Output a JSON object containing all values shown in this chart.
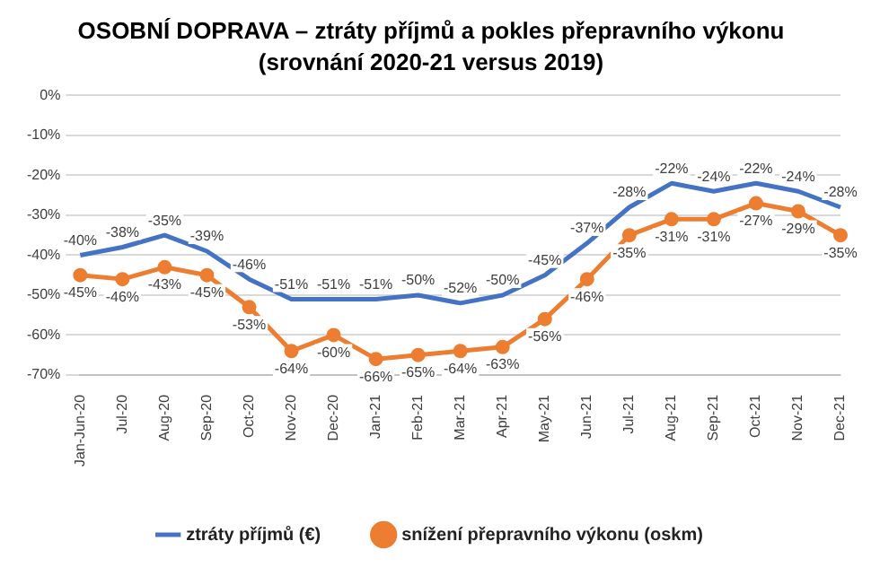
{
  "chart_data": {
    "type": "line",
    "title": "OSOBNÍ DOPRAVA – ztráty příjmů a pokles přepravního výkonu",
    "subtitle": "(srovnání 2020-21 versus 2019)",
    "categories": [
      "Jan-Jun-20",
      "Jul-20",
      "Aug-20",
      "Sep-20",
      "Oct-20",
      "Nov-20",
      "Dec-20",
      "Jan-21",
      "Feb-21",
      "Mar-21",
      "Apr-21",
      "May-21",
      "Jun-21",
      "Jul-21",
      "Aug-21",
      "Sep-21",
      "Oct-21",
      "Nov-21",
      "Dec-21"
    ],
    "series": [
      {
        "name": "ztráty příjmů (€)",
        "color": "#4472c4",
        "marker": "none",
        "values": [
          -40,
          -38,
          -35,
          -39,
          -46,
          -51,
          -51,
          -51,
          -50,
          -52,
          -50,
          -45,
          -37,
          -28,
          -22,
          -24,
          -22,
          -24,
          -28
        ],
        "value_labels": [
          "-40%",
          "-38%",
          "-35%",
          "-39%",
          "-46%",
          "-51%",
          "-51%",
          "-51%",
          "-50%",
          "-52%",
          "-50%",
          "-45%",
          "-37%",
          "-28%",
          "-22%",
          "-24%",
          "-22%",
          "-24%",
          "-28%"
        ]
      },
      {
        "name": "snížení přepravního výkonu (oskm)",
        "color": "#ed7d31",
        "marker": "circle",
        "values": [
          -45,
          -46,
          -43,
          -45,
          -53,
          -64,
          -60,
          -66,
          -65,
          -64,
          -63,
          -56,
          -46,
          -35,
          -31,
          -31,
          -27,
          -29,
          -35
        ],
        "value_labels": [
          "-45%",
          "-46%",
          "-43%",
          "-45%",
          "-53%",
          "-64%",
          "-60%",
          "-66%",
          "-65%",
          "-64%",
          "-63%",
          "-56%",
          "-46%",
          "-35%",
          "-31%",
          "-31%",
          "-27%",
          "-29%",
          "-35%"
        ]
      }
    ],
    "ylim": [
      -70,
      0
    ],
    "yticks": [
      {
        "value": -70,
        "label": "-70%"
      },
      {
        "value": -60,
        "label": "-60%"
      },
      {
        "value": -50,
        "label": "-50%"
      },
      {
        "value": -40,
        "label": "-40%"
      },
      {
        "value": -30,
        "label": "-30%"
      },
      {
        "value": -20,
        "label": "-20%"
      },
      {
        "value": -10,
        "label": "-10%"
      },
      {
        "value": 0,
        "label": "0%"
      }
    ],
    "grid": "y",
    "legend": "bottom"
  }
}
